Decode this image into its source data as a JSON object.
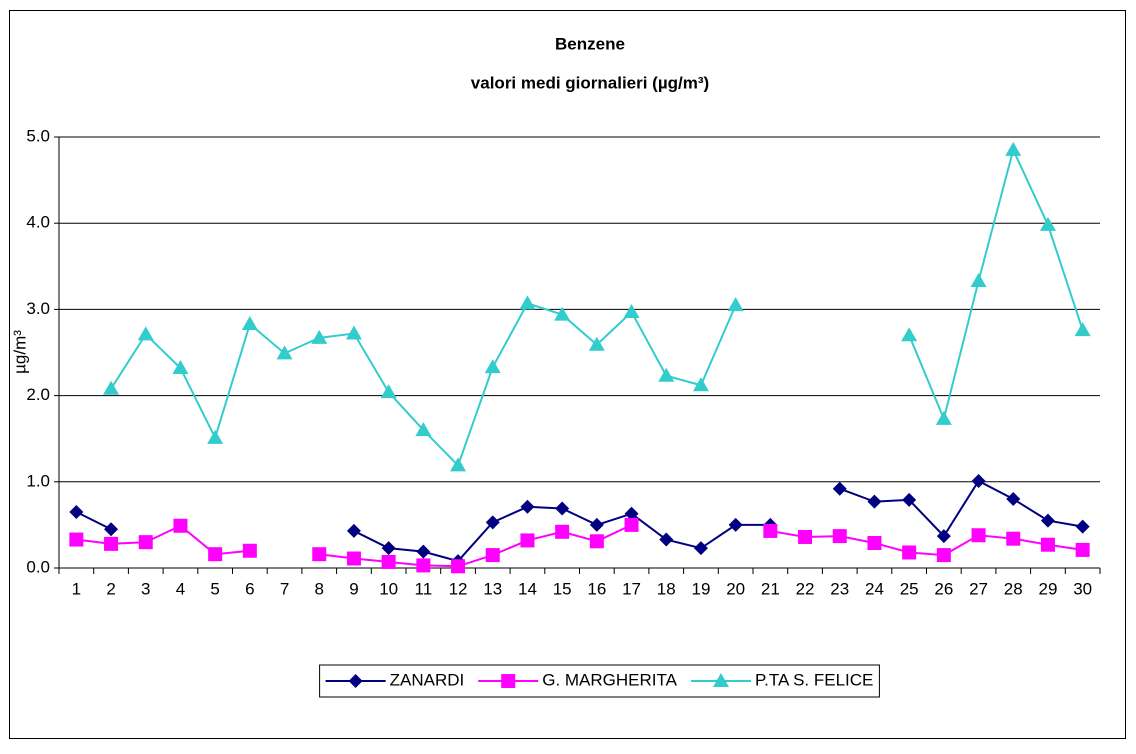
{
  "chart_data": {
    "type": "line",
    "title": "Benzene",
    "subtitle": "valori medi giornalieri (µg/m³)",
    "y_label": "µg/m³",
    "categories": [
      "1",
      "2",
      "3",
      "4",
      "5",
      "6",
      "7",
      "8",
      "9",
      "10",
      "11",
      "12",
      "13",
      "14",
      "15",
      "16",
      "17",
      "18",
      "19",
      "20",
      "21",
      "22",
      "23",
      "24",
      "25",
      "26",
      "27",
      "28",
      "29",
      "30"
    ],
    "series": [
      {
        "name": "ZANARDI",
        "color": "#000080",
        "marker": "diamond",
        "values": [
          0.65,
          0.45,
          null,
          null,
          null,
          null,
          null,
          null,
          0.43,
          0.23,
          0.19,
          0.08,
          0.53,
          0.71,
          0.69,
          0.5,
          0.63,
          0.33,
          0.23,
          0.5,
          0.5,
          null,
          0.92,
          0.77,
          0.79,
          0.37,
          1.01,
          0.8,
          0.55,
          0.48
        ]
      },
      {
        "name": "G. MARGHERITA",
        "color": "#ff00ff",
        "marker": "square",
        "values": [
          0.33,
          0.28,
          0.3,
          0.49,
          0.16,
          0.2,
          null,
          0.16,
          0.11,
          0.07,
          0.03,
          0.02,
          0.15,
          0.32,
          0.42,
          0.31,
          0.5,
          null,
          null,
          null,
          0.43,
          0.36,
          0.37,
          0.29,
          0.18,
          0.15,
          0.38,
          0.34,
          0.27,
          0.21
        ]
      },
      {
        "name": "P.TA S. FELICE",
        "color": "#33cccc",
        "marker": "triangle",
        "values": [
          null,
          2.08,
          2.71,
          2.32,
          1.51,
          2.83,
          2.49,
          2.67,
          2.72,
          2.04,
          1.6,
          1.19,
          2.33,
          3.07,
          2.94,
          2.59,
          2.97,
          2.23,
          2.12,
          3.05,
          null,
          null,
          null,
          null,
          2.7,
          1.73,
          3.33,
          4.85,
          3.98,
          2.76
        ]
      }
    ],
    "ylim": [
      0,
      5
    ],
    "yticks": [
      {
        "value": 0,
        "label": "0.0"
      },
      {
        "value": 1,
        "label": "1.0"
      },
      {
        "value": 2,
        "label": "2.0"
      },
      {
        "value": 3,
        "label": "3.0"
      },
      {
        "value": 4,
        "label": "4.0"
      },
      {
        "value": 5,
        "label": "5.0"
      }
    ],
    "grid": true,
    "legend": "bottom"
  }
}
